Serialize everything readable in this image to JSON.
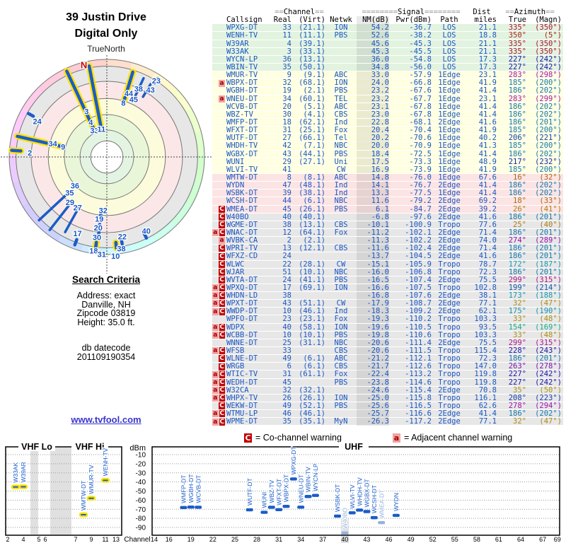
{
  "page_title_line1": "39 Justin Drive",
  "page_title_line2": "Digital Only",
  "true_north_label": "TrueNorth",
  "link_text": "www.tvfool.com",
  "search_criteria": {
    "heading": "Search Criteria",
    "lines": [
      "Address: exact",
      "Danville, NH",
      "Zipcode 03819",
      "Height: 35.0 ft."
    ]
  },
  "datecode_lines": [
    "db datecode",
    "201109190354"
  ],
  "legend": {
    "co_symbol": "C",
    "co_text": "= Co-channel warning",
    "adj_symbol": "a",
    "adj_text": "= Adjacent channel warning"
  },
  "colors": {
    "data_blue": "#1b57c4",
    "marker_blue": "#1a5cc8",
    "marker_light": "#93b3de",
    "highlight_yellow": "#ffe300",
    "warn_red": "#c00000",
    "warn_pink": "#f2a2a2",
    "zone_green": "#e2f3e0",
    "zone_yellow": "#ffffe1",
    "zone_pink": "#fce4e4",
    "zone_gray": "#e7e7e7"
  },
  "table": {
    "group_headers": {
      "channel": "==Channel==",
      "signal": "========Signal========",
      "dist": "Dist",
      "azimuth": "==Azimuth=="
    },
    "columns": [
      "Callsign",
      "Real",
      "(Virt)",
      "Netwk",
      "NM(dB)",
      "Pwr(dBm)",
      "Path",
      "miles",
      "True",
      "(Magn)"
    ],
    "rows": [
      [
        "WPXG-DT",
        33,
        "(21.1)",
        "ION",
        54.2,
        -36.7,
        "LOS",
        21.1,
        335,
        350,
        "",
        "g"
      ],
      [
        "WENH-TV",
        11,
        "(11.1)",
        "PBS",
        52.6,
        -38.2,
        "LOS",
        18.8,
        350,
        5,
        "",
        "g"
      ],
      [
        "W39AR",
        4,
        "(39.1)",
        "",
        45.6,
        -45.3,
        "LOS",
        21.1,
        335,
        350,
        "",
        "g"
      ],
      [
        "W33AK",
        3,
        "(33.1)",
        "",
        45.3,
        -45.5,
        "LOS",
        21.1,
        335,
        350,
        "",
        "g"
      ],
      [
        "WYCN-LP",
        36,
        "(13.1)",
        "",
        36.0,
        -54.8,
        "LOS",
        17.3,
        227,
        242,
        "",
        "g"
      ],
      [
        "WBIN-TV",
        35,
        "(50.1)",
        "",
        34.8,
        -56.0,
        "LOS",
        17.3,
        227,
        242,
        "",
        "g"
      ],
      [
        "WMUR-TV",
        9,
        "(9.1)",
        "ABC",
        33.0,
        -57.9,
        "1Edge",
        23.1,
        283,
        298,
        "",
        "y"
      ],
      [
        "WBPX-DT",
        32,
        "(68.1)",
        "ION",
        24.0,
        -66.8,
        "1Edge",
        41.9,
        185,
        200,
        "a",
        "y"
      ],
      [
        "WGBH-DT",
        19,
        "(2.1)",
        "PBS",
        23.2,
        -67.6,
        "1Edge",
        41.4,
        186,
        202,
        "",
        "y"
      ],
      [
        "WNEU-DT",
        34,
        "(60.1)",
        "TEL",
        23.2,
        -67.7,
        "1Edge",
        23.1,
        283,
        299,
        "a",
        "y"
      ],
      [
        "WCVB-DT",
        20,
        "(5.1)",
        "ABC",
        23.1,
        -67.8,
        "1Edge",
        41.4,
        186,
        202,
        "",
        "y"
      ],
      [
        "WBZ-TV",
        30,
        "(4.1)",
        "CBS",
        23.0,
        -67.8,
        "1Edge",
        41.4,
        186,
        202,
        "",
        "y"
      ],
      [
        "WMFP-DT",
        18,
        "(62.1)",
        "Ind",
        22.8,
        -68.1,
        "2Edge",
        41.6,
        186,
        201,
        "",
        "y"
      ],
      [
        "WFXT-DT",
        31,
        "(25.1)",
        "Fox",
        20.4,
        -70.4,
        "1Edge",
        41.9,
        185,
        200,
        "",
        "y"
      ],
      [
        "WUTF-DT",
        27,
        "(66.1)",
        "Tel",
        20.2,
        -70.6,
        "1Edge",
        40.2,
        206,
        221,
        "",
        "y"
      ],
      [
        "WHDH-TV",
        42,
        "(7.1)",
        "NBC",
        20.0,
        -70.9,
        "1Edge",
        41.3,
        185,
        200,
        "",
        "y"
      ],
      [
        "WGBX-DT",
        43,
        "(44.1)",
        "PBS",
        18.4,
        -72.5,
        "1Edge",
        41.4,
        186,
        202,
        "",
        "y"
      ],
      [
        "WUNI",
        29,
        "(27.1)",
        "Uni",
        17.5,
        -73.3,
        "1Edge",
        48.9,
        217,
        232,
        "",
        "y"
      ],
      [
        "WLVI-TV",
        41,
        "",
        "CW",
        16.9,
        -73.9,
        "1Edge",
        41.9,
        185,
        200,
        "",
        "y"
      ],
      [
        "WMTW-DT",
        8,
        "(8.1)",
        "ABC",
        14.8,
        -76.0,
        "1Edge",
        67.6,
        16,
        32,
        "",
        "p"
      ],
      [
        "WYDN",
        47,
        "(48.1)",
        "Ind",
        14.1,
        -76.7,
        "2Edge",
        41.4,
        186,
        202,
        "",
        "p"
      ],
      [
        "WSBK-DT",
        39,
        "(38.1)",
        "Ind",
        13.3,
        -77.5,
        "1Edge",
        41.4,
        186,
        202,
        "",
        "p"
      ],
      [
        "WCSH-DT",
        44,
        "(6.1)",
        "NBC",
        11.6,
        -79.2,
        "2Edge",
        69.2,
        18,
        33,
        "",
        "p"
      ],
      [
        "WMEA-DT",
        45,
        "(26.1)",
        "PBS",
        6.1,
        -84.7,
        "2Edge",
        39.2,
        26,
        41,
        "C",
        "p"
      ],
      [
        "W40BO",
        40,
        "(40.1)",
        "",
        -6.8,
        -97.6,
        "2Edge",
        41.6,
        186,
        201,
        "C",
        "x"
      ],
      [
        "WGME-DT",
        38,
        "(13.1)",
        "CBS",
        -10.1,
        -100.9,
        "Tropo",
        77.6,
        25,
        40,
        "C",
        "x"
      ],
      [
        "WNAC-DT",
        12,
        "(64.1)",
        "Fox",
        -11.2,
        -102.1,
        "2Edge",
        71.4,
        186,
        201,
        "aC",
        "x"
      ],
      [
        "WVBK-CA",
        2,
        "(2.1)",
        "",
        -11.3,
        -102.2,
        "2Edge",
        74.0,
        274,
        289,
        "a",
        "x"
      ],
      [
        "WPRI-TV",
        13,
        "(12.1)",
        "CBS",
        -11.6,
        -102.4,
        "2Edge",
        71.4,
        186,
        201,
        "C",
        "x"
      ],
      [
        "WFXZ-CD",
        24,
        "",
        "",
        -13.7,
        -104.5,
        "2Edge",
        41.6,
        186,
        201,
        "C",
        "x"
      ],
      [
        "WLWC",
        22,
        "(28.1)",
        "CW",
        -15.1,
        -105.9,
        "Tropo",
        78.7,
        172,
        187,
        "C",
        "x"
      ],
      [
        "WJAR",
        51,
        "(10.1)",
        "NBC",
        -16.0,
        -106.8,
        "Tropo",
        72.3,
        186,
        201,
        "C",
        "x"
      ],
      [
        "WVTA-DT",
        24,
        "(41.1)",
        "PBS",
        -16.5,
        -107.4,
        "2Edge",
        75.5,
        299,
        315,
        "C",
        "x"
      ],
      [
        "WPXQ-DT",
        17,
        "(69.1)",
        "ION",
        -16.6,
        -107.5,
        "Tropo",
        102.8,
        199,
        214,
        "aC",
        "x"
      ],
      [
        "WHDN-LD",
        38,
        "",
        "",
        -16.8,
        -107.6,
        "2Edge",
        38.1,
        173,
        188,
        "aC",
        "x"
      ],
      [
        "WPXT-DT",
        43,
        "(51.1)",
        "CW",
        -17.9,
        -108.7,
        "2Edge",
        77.1,
        32,
        47,
        "aC",
        "x"
      ],
      [
        "WWDP-DT",
        10,
        "(46.1)",
        "Ind",
        -18.3,
        -109.2,
        "2Edge",
        62.1,
        175,
        190,
        "aC",
        "x"
      ],
      [
        "WPFO-DT",
        23,
        "(23.1)",
        "Fox",
        -19.3,
        -110.2,
        "Tropo",
        103.3,
        33,
        48,
        "",
        "x"
      ],
      [
        "WDPX",
        40,
        "(58.1)",
        "ION",
        -19.6,
        -110.5,
        "Tropo",
        93.5,
        154,
        169,
        "aC",
        "x"
      ],
      [
        "WCBB-DT",
        10,
        "(10.1)",
        "PBS",
        -19.8,
        -110.6,
        "Tropo",
        103.3,
        33,
        48,
        "aC",
        "x"
      ],
      [
        "WNNE-DT",
        25,
        "(31.1)",
        "NBC",
        -20.6,
        -111.4,
        "2Edge",
        75.5,
        299,
        315,
        "",
        "x"
      ],
      [
        "WFSB",
        33,
        "",
        "CBS",
        -20.6,
        -111.5,
        "Tropo",
        115.4,
        228,
        243,
        "aC",
        "x"
      ],
      [
        "WLNE-DT",
        49,
        "(6.1)",
        "ABC",
        -21.2,
        -112.1,
        "Tropo",
        72.3,
        186,
        201,
        "C",
        "x"
      ],
      [
        "WRGB",
        6,
        "(6.1)",
        "CBS",
        -21.7,
        -112.6,
        "Tropo",
        147.0,
        263,
        278,
        "C",
        "x"
      ],
      [
        "WTIC-TV",
        31,
        "(61.1)",
        "Fox",
        -22.4,
        -113.2,
        "Tropo",
        119.8,
        227,
        242,
        "aC",
        "x"
      ],
      [
        "WEDH-DT",
        45,
        "",
        "PBS",
        -23.8,
        -114.6,
        "Tropo",
        119.8,
        227,
        242,
        "aC",
        "x"
      ],
      [
        "W32CA",
        32,
        "(32.1)",
        "",
        -24.6,
        -115.4,
        "2Edge",
        70.8,
        35,
        50,
        "aC",
        "x"
      ],
      [
        "WHPX-TV",
        26,
        "(26.1)",
        "ION",
        -25.0,
        -115.8,
        "Tropo",
        116.1,
        208,
        223,
        "aC",
        "x"
      ],
      [
        "WEKW-DT",
        49,
        "(52.1)",
        "PBS",
        -25.6,
        -116.5,
        "Tropo",
        62.6,
        278,
        294,
        "C",
        "x"
      ],
      [
        "WTMU-LP",
        46,
        "(46.1)",
        "",
        -25.7,
        -116.6,
        "2Edge",
        41.4,
        186,
        202,
        "aC",
        "x"
      ],
      [
        "WPME-DT",
        35,
        "(35.1)",
        "MyN",
        -26.3,
        -117.2,
        "2Edge",
        77.1,
        32,
        47,
        "aC",
        "x"
      ]
    ]
  },
  "radar": {
    "n_label": "N",
    "lines": [
      {
        "az": 335,
        "r0": 0.32,
        "r1": 0.97,
        "hl": true
      },
      {
        "az": 349,
        "r0": 0.3,
        "r1": 0.95,
        "hl": true
      },
      {
        "az": 17,
        "r0": 0.6,
        "r1": 0.91,
        "hl": true
      },
      {
        "az": 25,
        "r0": 0.68,
        "r1": 0.89,
        "hl": false
      },
      {
        "az": 31,
        "r0": 0.72,
        "r1": 0.87,
        "hl": false
      },
      {
        "az": 283,
        "r0": 0.48,
        "r1": 0.94,
        "hl": true
      },
      {
        "az": 227,
        "r0": 0.52,
        "r1": 0.95,
        "hl": false
      },
      {
        "az": 218,
        "r0": 0.57,
        "r1": 0.95,
        "hl": false
      },
      {
        "az": 209,
        "r0": 0.6,
        "r1": 0.88,
        "hl": false
      }
    ],
    "dots": [
      {
        "az": 299,
        "r": 0.89,
        "len": 8,
        "hl": false
      },
      {
        "az": 274,
        "r": 0.93,
        "len": 13,
        "hl": true
      },
      {
        "az": 33,
        "r": 0.93,
        "len": 8,
        "hl": false
      },
      {
        "az": 186,
        "r": 0.62,
        "len": 7,
        "hl": false
      },
      {
        "az": 186,
        "r": 0.72,
        "len": 7,
        "hl": false
      },
      {
        "az": 186,
        "r": 0.8,
        "len": 7,
        "hl": false
      },
      {
        "az": 186,
        "r": 0.85,
        "len": 7,
        "hl": false
      },
      {
        "az": 187,
        "r": 0.91,
        "len": 8,
        "hl": true
      },
      {
        "az": 174,
        "r": 0.91,
        "len": 8,
        "hl": true
      },
      {
        "az": 200,
        "r": 0.93,
        "len": 8,
        "hl": false
      },
      {
        "az": 170,
        "r": 0.88,
        "len": 7,
        "hl": false
      },
      {
        "az": 154,
        "r": 0.9,
        "len": 7,
        "hl": false
      }
    ],
    "labels": [
      {
        "t": "N",
        "az": 346,
        "r": 0.97,
        "red": true
      },
      {
        "t": "3",
        "az": 336,
        "r": 0.51
      },
      {
        "t": "4",
        "az": 335,
        "r": 0.39
      },
      {
        "t": "33",
        "az": 335,
        "r": 0.3
      },
      {
        "t": "11",
        "az": 349,
        "r": 0.29
      },
      {
        "t": "8",
        "az": 17,
        "r": 0.58
      },
      {
        "t": "44",
        "az": 19,
        "r": 0.69
      },
      {
        "t": "45",
        "az": 25,
        "r": 0.65
      },
      {
        "t": "38",
        "az": 25,
        "r": 0.77
      },
      {
        "t": "43",
        "az": 33,
        "r": 0.82
      },
      {
        "t": "23",
        "az": 33,
        "r": 0.93
      },
      {
        "t": "24",
        "az": 297,
        "r": 0.8
      },
      {
        "t": "34",
        "az": 284,
        "r": 0.57
      },
      {
        "t": "9",
        "az": 283,
        "r": 0.46
      },
      {
        "t": "2",
        "az": 273,
        "r": 0.79
      },
      {
        "t": "36",
        "az": 228,
        "r": 0.44
      },
      {
        "t": "35",
        "az": 226,
        "r": 0.53
      },
      {
        "t": "29",
        "az": 219,
        "r": 0.6
      },
      {
        "t": "27",
        "az": 210,
        "r": 0.6
      },
      {
        "t": "32",
        "az": 184,
        "r": 0.55
      },
      {
        "t": "19",
        "az": 187,
        "r": 0.64
      },
      {
        "t": "20",
        "az": 187,
        "r": 0.73
      },
      {
        "t": "30",
        "az": 187,
        "r": 0.83
      },
      {
        "t": "17",
        "az": 201,
        "r": 0.84
      },
      {
        "t": "22",
        "az": 169,
        "r": 0.83
      },
      {
        "t": "40",
        "az": 152,
        "r": 0.86
      },
      {
        "t": "18",
        "az": 188,
        "r": 0.97
      },
      {
        "t": "31",
        "az": 183,
        "r": 1.0
      },
      {
        "t": "38",
        "az": 171,
        "r": 0.95
      },
      {
        "t": "10",
        "az": 175,
        "r": 1.02
      }
    ]
  },
  "chart_data": [
    {
      "type": "scatter",
      "panel": "VHF",
      "titles": [
        "VHF Lo",
        "VHF Hi"
      ],
      "xlabel": "Channel",
      "ylabel": "dBm",
      "xticks": [
        2,
        4,
        5,
        6,
        7,
        9,
        11,
        13
      ],
      "yticks": [
        -10,
        -20,
        -30,
        -40,
        -50,
        -60,
        -70,
        -80,
        -90
      ],
      "ylim": [
        -95,
        -5
      ],
      "points": [
        {
          "call": "W33AK",
          "ch": 3,
          "dbm": -45.5,
          "hl": true,
          "light": false
        },
        {
          "call": "W39AR",
          "ch": 4,
          "dbm": -45.3,
          "hl": true,
          "light": false
        },
        {
          "call": "WMTW-DT",
          "ch": 8,
          "dbm": -76.0,
          "hl": true,
          "light": false
        },
        {
          "call": "WMUR-TV",
          "ch": 9,
          "dbm": -57.9,
          "hl": true,
          "light": false
        },
        {
          "call": "WENH-TV",
          "ch": 11,
          "dbm": -38.2,
          "hl": true,
          "light": false
        }
      ]
    },
    {
      "type": "scatter",
      "panel": "UHF",
      "titles": [
        "UHF"
      ],
      "xlabel": "Channel",
      "ylabel": "dBm",
      "xticks": [
        14,
        16,
        19,
        22,
        25,
        28,
        31,
        34,
        37,
        40,
        43,
        46,
        49,
        52,
        55,
        58,
        61,
        64,
        67,
        69
      ],
      "yticks": [
        -10,
        -20,
        -30,
        -40,
        -50,
        -60,
        -70,
        -80,
        -90
      ],
      "ylim": [
        -95,
        -5
      ],
      "points": [
        {
          "call": "WMFP-DT",
          "ch": 18,
          "dbm": -68.1,
          "hl": false,
          "light": false
        },
        {
          "call": "WGBH-DT",
          "ch": 19,
          "dbm": -67.6,
          "hl": false,
          "light": false
        },
        {
          "call": "WCVB-DT",
          "ch": 20,
          "dbm": -67.8,
          "hl": false,
          "light": false
        },
        {
          "call": "WUTF-DT",
          "ch": 27,
          "dbm": -70.6,
          "hl": false,
          "light": false
        },
        {
          "call": "WUNI",
          "ch": 29,
          "dbm": -73.3,
          "hl": false,
          "light": false
        },
        {
          "call": "WBZ-TV",
          "ch": 30,
          "dbm": -67.8,
          "hl": false,
          "light": false
        },
        {
          "call": "WFXT-DT",
          "ch": 31,
          "dbm": -70.4,
          "hl": false,
          "light": false
        },
        {
          "call": "WBPX-DT",
          "ch": 32,
          "dbm": -66.8,
          "hl": false,
          "light": false
        },
        {
          "call": "WPXG-DT",
          "ch": 33,
          "dbm": -36.7,
          "hl": false,
          "light": false
        },
        {
          "call": "WNEU-DT",
          "ch": 34,
          "dbm": -67.7,
          "hl": false,
          "light": false
        },
        {
          "call": "WBIN-TV",
          "ch": 35,
          "dbm": -56.0,
          "hl": false,
          "light": false
        },
        {
          "call": "WYCN-LP",
          "ch": 36,
          "dbm": -54.8,
          "hl": false,
          "light": false
        },
        {
          "call": "WSBK-DT",
          "ch": 39,
          "dbm": -77.5,
          "hl": false,
          "light": false
        },
        {
          "call": "W40BO",
          "ch": 40,
          "dbm": -97.6,
          "hl": false,
          "light": true
        },
        {
          "call": "WLVI-TV",
          "ch": 41,
          "dbm": -73.9,
          "hl": false,
          "light": false
        },
        {
          "call": "WHDH-TV",
          "ch": 42,
          "dbm": -70.9,
          "hl": false,
          "light": false
        },
        {
          "call": "WGBX-DT",
          "ch": 43,
          "dbm": -72.5,
          "hl": false,
          "light": false
        },
        {
          "call": "WCSH-DT",
          "ch": 44,
          "dbm": -79.2,
          "hl": false,
          "light": false
        },
        {
          "call": "WMEA-DT",
          "ch": 45,
          "dbm": -84.7,
          "hl": false,
          "light": true
        },
        {
          "call": "WYDN",
          "ch": 47,
          "dbm": -76.7,
          "hl": false,
          "light": false
        }
      ]
    }
  ]
}
